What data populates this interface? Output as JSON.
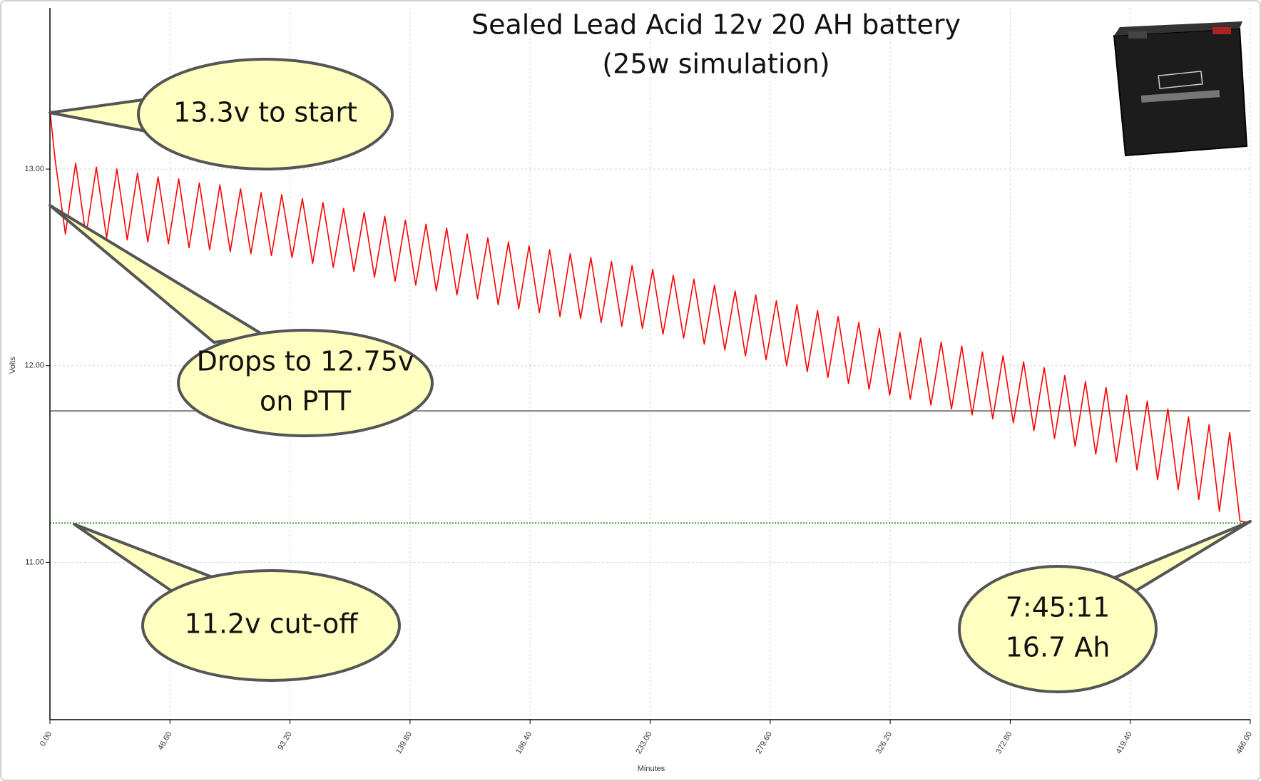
{
  "chart_data": {
    "type": "line",
    "title": "Sealed Lead Acid 12v 20 AH battery",
    "subtitle": "(25w simulation)",
    "x_label": "Minutes",
    "y_label": "Volts",
    "x": [
      0,
      2,
      6,
      10,
      14,
      18,
      22,
      26,
      30,
      34,
      38,
      42,
      46,
      50,
      54,
      58,
      62,
      66,
      70,
      74,
      78,
      82,
      86,
      90,
      94,
      98,
      102,
      106,
      110,
      114,
      118,
      122,
      126,
      130,
      134,
      138,
      142,
      146,
      150,
      154,
      158,
      162,
      166,
      170,
      174,
      178,
      182,
      186,
      190,
      194,
      198,
      202,
      206,
      210,
      214,
      218,
      222,
      226,
      230,
      234,
      238,
      242,
      246,
      250,
      254,
      258,
      262,
      266,
      270,
      274,
      278,
      282,
      286,
      290,
      294,
      298,
      302,
      306,
      310,
      314,
      318,
      322,
      326,
      330,
      334,
      338,
      342,
      346,
      350,
      354,
      358,
      362,
      366,
      370,
      374,
      378,
      382,
      386,
      390,
      394,
      398,
      402,
      406,
      410,
      414,
      418,
      422,
      426,
      430,
      434,
      438,
      442,
      446,
      450,
      454,
      458,
      462,
      466
    ],
    "series": [
      {
        "color": "#ff0000",
        "values": [
          13.3,
          13.05,
          12.67,
          13.03,
          12.66,
          13.01,
          12.65,
          13,
          12.64,
          12.98,
          12.63,
          12.96,
          12.62,
          12.95,
          12.6,
          12.93,
          12.59,
          12.92,
          12.58,
          12.9,
          12.57,
          12.88,
          12.56,
          12.87,
          12.55,
          12.85,
          12.52,
          12.83,
          12.5,
          12.8,
          12.48,
          12.78,
          12.45,
          12.76,
          12.43,
          12.74,
          12.41,
          12.72,
          12.38,
          12.7,
          12.36,
          12.67,
          12.34,
          12.65,
          12.31,
          12.63,
          12.29,
          12.61,
          12.27,
          12.59,
          12.25,
          12.57,
          12.24,
          12.55,
          12.22,
          12.53,
          12.2,
          12.51,
          12.19,
          12.49,
          12.16,
          12.46,
          12.14,
          12.44,
          12.11,
          12.41,
          12.08,
          12.38,
          12.05,
          12.36,
          12.03,
          12.33,
          12,
          12.31,
          11.97,
          12.28,
          11.94,
          12.25,
          11.91,
          12.22,
          11.88,
          12.19,
          11.85,
          12.17,
          11.83,
          12.14,
          11.8,
          12.12,
          11.78,
          12.1,
          11.75,
          12.07,
          11.73,
          12.05,
          11.71,
          12.02,
          11.67,
          11.99,
          11.63,
          11.95,
          11.59,
          11.92,
          11.55,
          11.89,
          11.51,
          11.85,
          11.47,
          11.82,
          11.42,
          11.78,
          11.37,
          11.74,
          11.32,
          11.7,
          11.26,
          11.66,
          11.21,
          11.2
        ]
      }
    ],
    "reference_lines": [
      {
        "value": 11.77,
        "color": "#808080"
      },
      {
        "value": 11.2,
        "color": "#008000",
        "style": "dotted"
      }
    ],
    "xlim": [
      0,
      466
    ],
    "ylim": [
      10.2,
      13.82
    ],
    "xticks": [
      {
        "value": 0,
        "label": "0.00"
      },
      {
        "value": 46.6,
        "label": "46.60"
      },
      {
        "value": 93.2,
        "label": "93.20"
      },
      {
        "value": 139.8,
        "label": "139.80"
      },
      {
        "value": 186.4,
        "label": "186.40"
      },
      {
        "value": 233,
        "label": "233.00"
      },
      {
        "value": 279.6,
        "label": "279.60"
      },
      {
        "value": 326.2,
        "label": "326.20"
      },
      {
        "value": 372.8,
        "label": "372.80"
      },
      {
        "value": 419.4,
        "label": "419.40"
      },
      {
        "value": 466,
        "label": "466.00"
      }
    ],
    "yticks": [
      {
        "value": 11,
        "label": "11.00"
      },
      {
        "value": 12,
        "label": "12.00"
      },
      {
        "value": 13,
        "label": "13.00"
      }
    ],
    "grid": true,
    "annotations": [
      {
        "text": [
          "13.3v to start"
        ]
      },
      {
        "text": [
          "Drops to 12.75v",
          "on PTT"
        ]
      },
      {
        "text": [
          "11.2v cut-off"
        ]
      },
      {
        "text": [
          "7:45:11",
          "16.7 Ah"
        ]
      }
    ]
  }
}
